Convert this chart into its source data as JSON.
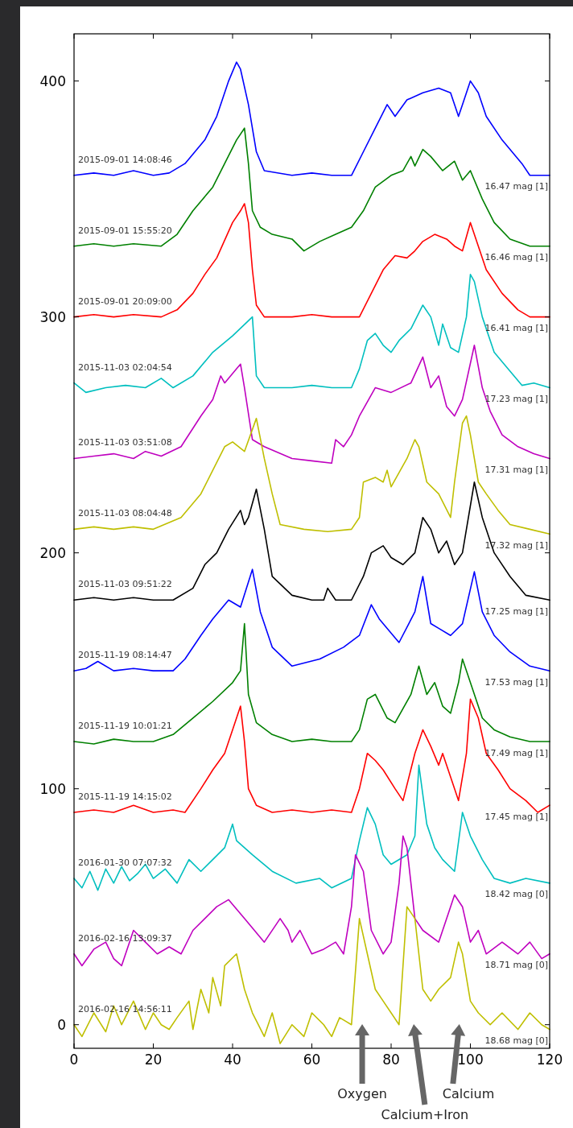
{
  "chart_data": {
    "type": "line",
    "xlim": [
      0,
      120
    ],
    "ylim": [
      -10,
      420
    ],
    "xticks": [
      0,
      20,
      40,
      60,
      80,
      100,
      120
    ],
    "yticks": [
      0,
      100,
      200,
      300,
      400
    ],
    "grid": false,
    "marker": "none",
    "line_style": "solid",
    "series": [
      {
        "name": "2015-09-01 14:08:46",
        "color": "#0000ff",
        "x": [
          0,
          5,
          10,
          15,
          20,
          24,
          28,
          33,
          36,
          39,
          41,
          42,
          44,
          46,
          48,
          55,
          60,
          65,
          70,
          73,
          76,
          79,
          81,
          84,
          88,
          92,
          95,
          97,
          98,
          100,
          102,
          104,
          108,
          113,
          115,
          120
        ],
        "values": [
          360,
          361,
          360,
          362,
          360,
          361,
          365,
          375,
          385,
          400,
          408,
          405,
          390,
          370,
          362,
          360,
          361,
          360,
          360,
          370,
          380,
          390,
          385,
          392,
          395,
          397,
          395,
          385,
          390,
          400,
          395,
          385,
          375,
          365,
          360,
          360
        ]
      },
      {
        "name": "2015-09-01 15:55:20",
        "color": "#008000",
        "x": [
          0,
          5,
          10,
          15,
          22,
          26,
          30,
          35,
          38,
          41,
          43,
          44,
          45,
          47,
          50,
          55,
          58,
          62,
          66,
          70,
          73,
          76,
          80,
          83,
          85,
          86,
          88,
          90,
          93,
          96,
          98,
          100,
          103,
          106,
          110,
          115,
          120
        ],
        "values": [
          330,
          331,
          330,
          331,
          330,
          335,
          345,
          355,
          365,
          375,
          380,
          365,
          345,
          338,
          335,
          333,
          328,
          332,
          335,
          338,
          345,
          355,
          360,
          362,
          368,
          364,
          371,
          368,
          362,
          366,
          358,
          362,
          350,
          340,
          333,
          330,
          330
        ]
      },
      {
        "name": "2015-09-01 20:09:00",
        "color": "#ff0000",
        "x": [
          0,
          5,
          10,
          15,
          22,
          26,
          30,
          33,
          36,
          40,
          42,
          43,
          44,
          45,
          46,
          48,
          55,
          60,
          65,
          72,
          75,
          78,
          81,
          84,
          86,
          88,
          91,
          94,
          96,
          98,
          100,
          102,
          104,
          108,
          112,
          115,
          120
        ],
        "values": [
          300,
          301,
          300,
          301,
          300,
          303,
          310,
          318,
          325,
          340,
          345,
          348,
          340,
          320,
          305,
          300,
          300,
          301,
          300,
          300,
          310,
          320,
          326,
          325,
          328,
          332,
          335,
          333,
          330,
          328,
          340,
          330,
          320,
          310,
          303,
          300,
          300
        ]
      },
      {
        "name": "2015-11-03 02:04:54",
        "color": "#00bfbf",
        "x": [
          0,
          3,
          8,
          13,
          18,
          22,
          25,
          30,
          35,
          40,
          45,
          46,
          48,
          55,
          60,
          65,
          70,
          72,
          74,
          76,
          78,
          80,
          82,
          85,
          88,
          90,
          92,
          93,
          95,
          97,
          99,
          100,
          101,
          103,
          106,
          110,
          113,
          116,
          120
        ],
        "values": [
          272,
          268,
          270,
          271,
          270,
          274,
          270,
          275,
          285,
          292,
          300,
          275,
          270,
          270,
          271,
          270,
          270,
          278,
          290,
          293,
          288,
          285,
          290,
          295,
          305,
          300,
          288,
          297,
          287,
          285,
          300,
          318,
          315,
          300,
          285,
          277,
          271,
          272,
          270
        ]
      },
      {
        "name": "2015-11-03 03:51:08",
        "color": "#bf00bf",
        "x": [
          0,
          5,
          10,
          15,
          18,
          22,
          27,
          32,
          35,
          37,
          38,
          41,
          42,
          43,
          45,
          48,
          55,
          60,
          65,
          66,
          68,
          70,
          72,
          76,
          80,
          85,
          88,
          90,
          92,
          94,
          96,
          98,
          101,
          103,
          105,
          108,
          112,
          116,
          120
        ],
        "values": [
          240,
          241,
          242,
          240,
          243,
          241,
          245,
          258,
          265,
          275,
          272,
          278,
          280,
          270,
          248,
          245,
          240,
          239,
          238,
          248,
          245,
          250,
          258,
          270,
          268,
          272,
          283,
          270,
          275,
          262,
          258,
          265,
          288,
          270,
          260,
          250,
          245,
          242,
          240
        ]
      },
      {
        "name": "2015-11-03 08:04:48",
        "color": "#bfbf00",
        "x": [
          0,
          5,
          10,
          15,
          20,
          27,
          32,
          35,
          38,
          40,
          43,
          46,
          48,
          50,
          52,
          58,
          64,
          70,
          72,
          73,
          76,
          78,
          79,
          80,
          84,
          86,
          87,
          89,
          92,
          95,
          96,
          98,
          99,
          100,
          102,
          104,
          107,
          110,
          115,
          120
        ],
        "values": [
          210,
          211,
          210,
          211,
          210,
          215,
          225,
          235,
          245,
          247,
          243,
          257,
          240,
          225,
          212,
          210,
          209,
          210,
          215,
          230,
          232,
          230,
          235,
          228,
          240,
          248,
          245,
          230,
          225,
          215,
          230,
          255,
          258,
          250,
          230,
          225,
          218,
          212,
          210,
          208
        ]
      },
      {
        "name": "2015-11-03 09:51:22",
        "color": "#000000",
        "x": [
          0,
          5,
          10,
          15,
          20,
          25,
          30,
          33,
          36,
          39,
          42,
          43,
          44,
          46,
          48,
          50,
          55,
          60,
          63,
          64,
          66,
          70,
          73,
          75,
          78,
          80,
          83,
          86,
          88,
          90,
          92,
          94,
          96,
          98,
          101,
          103,
          106,
          110,
          114,
          120
        ],
        "values": [
          180,
          181,
          180,
          181,
          180,
          180,
          185,
          195,
          200,
          210,
          218,
          212,
          215,
          227,
          210,
          190,
          182,
          180,
          180,
          185,
          180,
          180,
          190,
          200,
          203,
          198,
          195,
          200,
          215,
          210,
          200,
          205,
          195,
          200,
          230,
          215,
          200,
          190,
          182,
          180
        ]
      },
      {
        "name": "2015-11-19 08:14:47",
        "color": "#0000ff",
        "x": [
          0,
          3,
          6,
          10,
          15,
          20,
          25,
          28,
          32,
          35,
          39,
          42,
          45,
          47,
          50,
          55,
          62,
          68,
          72,
          75,
          77,
          79,
          82,
          86,
          88,
          90,
          92,
          95,
          98,
          101,
          103,
          106,
          110,
          115,
          120
        ],
        "values": [
          150,
          151,
          154,
          150,
          151,
          150,
          150,
          155,
          165,
          172,
          180,
          177,
          193,
          175,
          160,
          152,
          155,
          160,
          165,
          178,
          172,
          168,
          162,
          175,
          190,
          170,
          168,
          165,
          170,
          192,
          175,
          165,
          158,
          152,
          150
        ]
      },
      {
        "name": "2015-11-19 10:01:21",
        "color": "#008000",
        "x": [
          0,
          5,
          10,
          15,
          20,
          25,
          30,
          35,
          40,
          42,
          43,
          44,
          46,
          50,
          55,
          60,
          65,
          70,
          72,
          74,
          76,
          79,
          81,
          85,
          87,
          89,
          91,
          93,
          95,
          97,
          98,
          100,
          103,
          106,
          110,
          115,
          120
        ],
        "values": [
          120,
          119,
          121,
          120,
          120,
          123,
          130,
          137,
          145,
          150,
          170,
          140,
          128,
          123,
          120,
          121,
          120,
          120,
          125,
          138,
          140,
          130,
          128,
          140,
          152,
          140,
          145,
          135,
          132,
          145,
          155,
          145,
          130,
          125,
          122,
          120,
          120
        ]
      },
      {
        "name": "2015-11-19 14:15:02",
        "color": "#ff0000",
        "x": [
          0,
          5,
          10,
          15,
          20,
          25,
          28,
          32,
          35,
          38,
          40,
          42,
          43,
          44,
          46,
          50,
          55,
          60,
          65,
          70,
          72,
          74,
          76,
          78,
          81,
          83,
          86,
          88,
          90,
          92,
          93,
          95,
          97,
          99,
          100,
          102,
          104,
          107,
          110,
          114,
          117,
          120
        ],
        "values": [
          90,
          91,
          90,
          93,
          90,
          91,
          90,
          100,
          108,
          115,
          125,
          135,
          120,
          100,
          93,
          90,
          91,
          90,
          91,
          90,
          100,
          115,
          112,
          108,
          100,
          95,
          115,
          125,
          118,
          110,
          115,
          105,
          95,
          115,
          138,
          130,
          115,
          108,
          100,
          95,
          90,
          93
        ]
      },
      {
        "name": "2016-01-30 07:07:32",
        "color": "#00bfbf",
        "x": [
          0,
          2,
          4,
          6,
          8,
          10,
          12,
          14,
          16,
          18,
          20,
          23,
          26,
          29,
          32,
          35,
          38,
          40,
          41,
          43,
          45,
          50,
          56,
          62,
          65,
          70,
          72,
          74,
          76,
          78,
          80,
          84,
          86,
          87,
          89,
          91,
          93,
          96,
          98,
          100,
          103,
          106,
          110,
          114,
          120
        ],
        "values": [
          62,
          58,
          65,
          57,
          66,
          60,
          67,
          61,
          64,
          68,
          62,
          66,
          60,
          70,
          65,
          70,
          75,
          85,
          78,
          75,
          72,
          65,
          60,
          62,
          58,
          62,
          78,
          92,
          85,
          72,
          68,
          72,
          80,
          110,
          85,
          75,
          70,
          65,
          90,
          80,
          70,
          62,
          60,
          62,
          60
        ]
      },
      {
        "name": "2016-02-16 13:09:37",
        "color": "#bf00bf",
        "x": [
          0,
          2,
          5,
          8,
          10,
          12,
          15,
          18,
          21,
          24,
          27,
          30,
          33,
          36,
          39,
          43,
          48,
          52,
          54,
          55,
          57,
          60,
          63,
          66,
          68,
          70,
          71,
          73,
          75,
          78,
          80,
          82,
          83,
          84,
          86,
          88,
          92,
          95,
          96,
          98,
          100,
          102,
          104,
          108,
          112,
          115,
          118,
          120
        ],
        "values": [
          30,
          25,
          32,
          35,
          28,
          25,
          40,
          35,
          30,
          33,
          30,
          40,
          45,
          50,
          53,
          45,
          35,
          45,
          40,
          35,
          40,
          30,
          32,
          35,
          30,
          50,
          72,
          65,
          40,
          30,
          35,
          60,
          80,
          75,
          45,
          40,
          35,
          50,
          55,
          50,
          35,
          40,
          30,
          35,
          30,
          35,
          28,
          30
        ]
      },
      {
        "name": "2016-02-16 14:56:11",
        "color": "#bfbf00",
        "x": [
          0,
          2,
          5,
          8,
          10,
          12,
          15,
          18,
          20,
          22,
          24,
          26,
          29,
          30,
          32,
          34,
          35,
          37,
          38,
          41,
          43,
          45,
          48,
          50,
          52,
          55,
          58,
          60,
          63,
          65,
          67,
          70,
          72,
          74,
          76,
          78,
          80,
          82,
          84,
          86,
          88,
          90,
          92,
          95,
          97,
          98,
          100,
          102,
          105,
          108,
          112,
          115,
          118,
          120
        ],
        "values": [
          0,
          -5,
          5,
          -3,
          8,
          0,
          10,
          -2,
          5,
          0,
          -2,
          3,
          10,
          -2,
          15,
          5,
          20,
          8,
          25,
          30,
          15,
          5,
          -5,
          5,
          -8,
          0,
          -5,
          5,
          0,
          -5,
          3,
          0,
          45,
          30,
          15,
          10,
          5,
          0,
          50,
          45,
          15,
          10,
          15,
          20,
          35,
          30,
          10,
          5,
          0,
          5,
          -2,
          5,
          0,
          -2
        ]
      }
    ],
    "annotations": [
      "16.47 mag [1]",
      "16.46 mag [1]",
      "16.41 mag [1]",
      "17.23 mag [1]",
      "17.31 mag [1]",
      "17.32 mag [1]",
      "17.25 mag [1]",
      "17.53 mag [1]",
      "17.49 mag [1]",
      "17.45 mag [1]",
      "18.42 mag [0]",
      "18.71 mag [0]",
      "18.68 mag [0]",
      "Oxygen",
      "Calcium+Iron",
      "Calcium"
    ]
  }
}
